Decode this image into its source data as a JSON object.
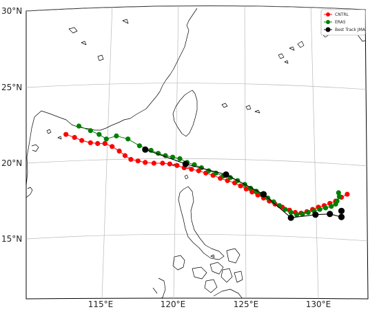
{
  "map": {
    "lat_labels": [
      "30°N",
      "25°N",
      "20°N",
      "15°N"
    ],
    "lon_labels": [
      "115°E",
      "120°E",
      "125°E",
      "130°E"
    ],
    "lon_range": [
      111,
      132.5
    ],
    "lat_range": [
      11,
      30
    ],
    "grid": true
  },
  "legend": {
    "placement": "top-right",
    "items": [
      {
        "label": "CNTRL",
        "color": "#ff0000"
      },
      {
        "label": "ERA5",
        "color": "#007f00"
      },
      {
        "label": "Best Track JMA",
        "color": "#000000"
      }
    ]
  },
  "chart_data": {
    "type": "scatter",
    "x_unit": "°E longitude",
    "y_unit": "°N latitude",
    "xlim": [
      111,
      132.5
    ],
    "ylim": [
      11,
      30
    ],
    "series": [
      {
        "name": "CNTRL",
        "color": "#ff0000",
        "points": [
          [
            112.5,
            21.9
          ],
          [
            113.1,
            21.7
          ],
          [
            113.6,
            21.5
          ],
          [
            114.2,
            21.35
          ],
          [
            114.7,
            21.3
          ],
          [
            115.2,
            21.3
          ],
          [
            115.7,
            21.1
          ],
          [
            116.2,
            20.8
          ],
          [
            116.6,
            20.5
          ],
          [
            117.0,
            20.25
          ],
          [
            117.5,
            20.15
          ],
          [
            118.0,
            20.05
          ],
          [
            118.6,
            20.0
          ],
          [
            119.2,
            20.0
          ],
          [
            119.7,
            19.95
          ],
          [
            120.2,
            19.85
          ],
          [
            120.7,
            19.7
          ],
          [
            121.2,
            19.6
          ],
          [
            121.7,
            19.5
          ],
          [
            122.2,
            19.35
          ],
          [
            122.7,
            19.2
          ],
          [
            123.2,
            19.0
          ],
          [
            123.7,
            18.85
          ],
          [
            124.2,
            18.7
          ],
          [
            124.6,
            18.5
          ],
          [
            125.0,
            18.3
          ],
          [
            125.4,
            18.1
          ],
          [
            125.8,
            17.9
          ],
          [
            126.2,
            17.7
          ],
          [
            126.6,
            17.5
          ],
          [
            127.0,
            17.3
          ],
          [
            127.5,
            17.1
          ],
          [
            128.0,
            16.9
          ],
          [
            128.4,
            16.75
          ],
          [
            128.8,
            16.7
          ],
          [
            129.2,
            16.8
          ],
          [
            129.6,
            16.95
          ],
          [
            130.0,
            17.1
          ],
          [
            130.4,
            17.2
          ],
          [
            130.8,
            17.35
          ],
          [
            131.2,
            17.5
          ],
          [
            131.6,
            17.75
          ],
          [
            132.0,
            17.95
          ]
        ]
      },
      {
        "name": "ERA5",
        "color": "#007f00",
        "points": [
          [
            113.4,
            22.45
          ],
          [
            114.2,
            22.15
          ],
          [
            114.8,
            21.9
          ],
          [
            115.3,
            21.6
          ],
          [
            116.0,
            21.8
          ],
          [
            116.8,
            21.6
          ],
          [
            117.6,
            21.15
          ],
          [
            118.4,
            20.85
          ],
          [
            118.9,
            20.65
          ],
          [
            119.4,
            20.5
          ],
          [
            119.9,
            20.4
          ],
          [
            120.4,
            20.3
          ],
          [
            120.9,
            20.05
          ],
          [
            121.4,
            19.9
          ],
          [
            121.9,
            19.7
          ],
          [
            122.4,
            19.5
          ],
          [
            122.9,
            19.35
          ],
          [
            123.4,
            19.15
          ],
          [
            123.9,
            19.05
          ],
          [
            124.4,
            18.85
          ],
          [
            124.9,
            18.6
          ],
          [
            125.3,
            18.35
          ],
          [
            125.7,
            18.15
          ],
          [
            126.1,
            17.95
          ],
          [
            126.5,
            17.7
          ],
          [
            126.9,
            17.45
          ],
          [
            127.3,
            17.2
          ],
          [
            127.7,
            16.95
          ],
          [
            128.1,
            16.75
          ],
          [
            128.5,
            16.6
          ],
          [
            128.9,
            16.65
          ],
          [
            129.3,
            16.75
          ],
          [
            129.7,
            16.85
          ],
          [
            130.1,
            16.95
          ],
          [
            130.5,
            17.05
          ],
          [
            130.9,
            17.15
          ],
          [
            131.2,
            17.3
          ],
          [
            131.3,
            17.5
          ],
          [
            131.45,
            17.8
          ],
          [
            131.4,
            18.05
          ]
        ]
      },
      {
        "name": "Best Track JMA",
        "color": "#000000",
        "points": [
          [
            118.0,
            20.9
          ],
          [
            120.8,
            19.95
          ],
          [
            123.6,
            19.25
          ],
          [
            126.2,
            17.95
          ],
          [
            128.1,
            16.4
          ],
          [
            129.8,
            16.6
          ],
          [
            130.8,
            16.65
          ],
          [
            131.6,
            16.45
          ],
          [
            131.6,
            16.85
          ]
        ]
      }
    ]
  }
}
